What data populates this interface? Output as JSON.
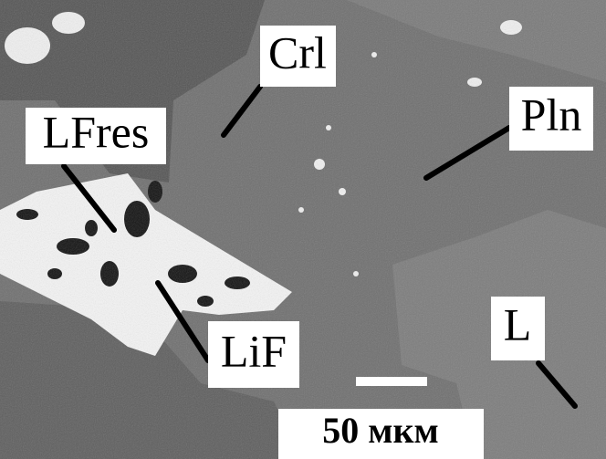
{
  "labels": [
    "Crl",
    "Pln",
    "LFres",
    "LiF",
    "L"
  ],
  "scale_label": "50 мкм"
}
